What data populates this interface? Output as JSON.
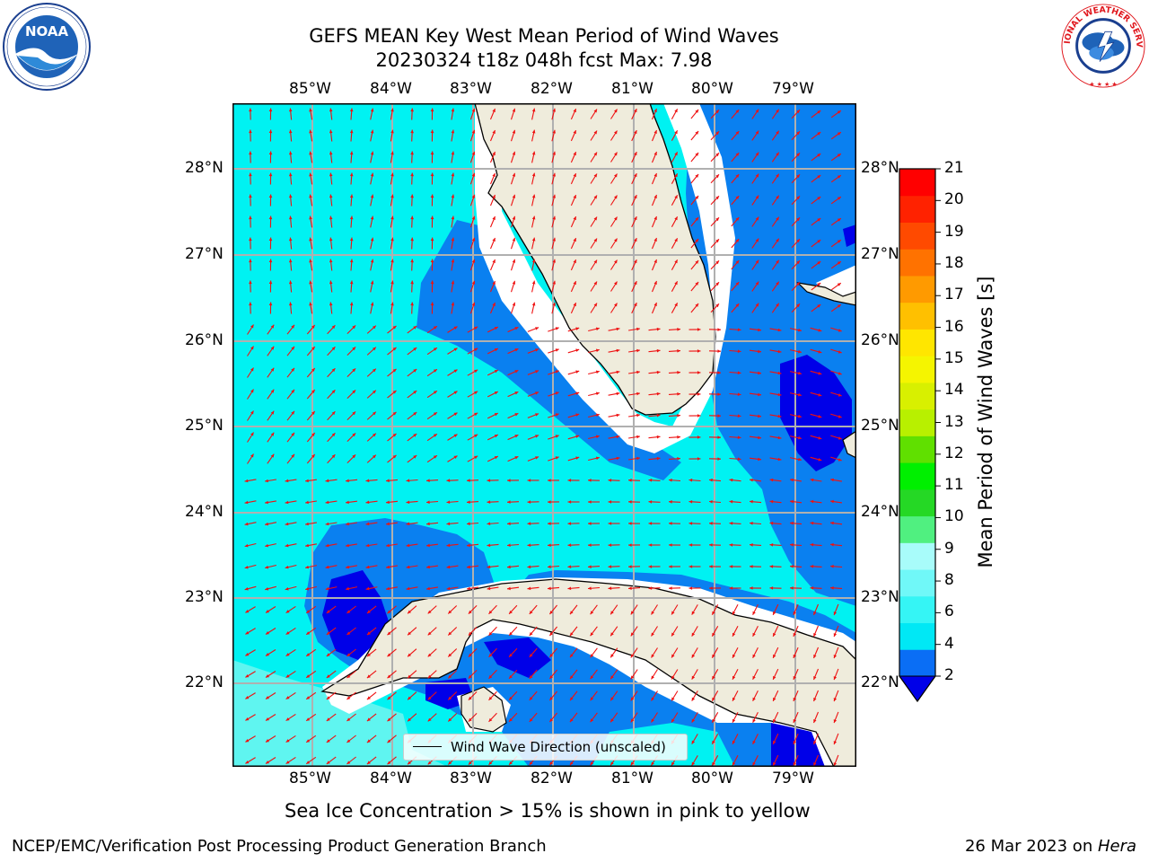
{
  "header": {
    "title_line1": "GEFS MEAN Key West Mean Period of Wind Waves",
    "title_line2": "20230324 t18z 048h fcst   Max: 7.98"
  },
  "logos": {
    "left": "NOAA",
    "left_ring_text": "NATIONAL OCEANIC AND ATMOSPHERIC ADMINISTRATION · U.S. DEPARTMENT OF COMMERCE",
    "right_ring_text": "NATIONAL WEATHER SERVICE"
  },
  "map": {
    "lon_labels": [
      "85°W",
      "84°W",
      "83°W",
      "82°W",
      "81°W",
      "80°W",
      "79°W"
    ],
    "lat_labels": [
      "28°N",
      "27°N",
      "26°N",
      "25°N",
      "24°N",
      "23°N",
      "22°N"
    ],
    "legend_label": "Wind Wave Direction (unscaled)",
    "colors": {
      "land": "#efecdc",
      "ocean_2_4": "#0a80f0",
      "ocean_4_6": "#00f2f2",
      "ocean_6_8": "#5ff5f0",
      "ocean_lt2": "#0000e8",
      "vector": "#ee1111",
      "grid": "#b0b0b0"
    }
  },
  "colorbar": {
    "title": "Mean Period of Wind Waves [s]",
    "tick_labels": [
      "21",
      "20",
      "19",
      "18",
      "17",
      "16",
      "15",
      "14",
      "13",
      "12",
      "11",
      "10",
      "9",
      "8",
      "6",
      "4",
      "2"
    ],
    "colors": [
      "#0a6ef5",
      "#00e8f5",
      "#35f5f5",
      "#70f8f8",
      "#a8fcfa",
      "#50f080",
      "#25d825",
      "#00f000",
      "#60e000",
      "#b8f000",
      "#d8f000",
      "#f5f500",
      "#ffe600",
      "#ffc000",
      "#ff9a00",
      "#ff7200",
      "#ff4a00",
      "#ff2200",
      "#ff0000"
    ]
  },
  "subtitle": "Sea Ice Concentration > 15% is shown in pink to yellow",
  "footer": {
    "left": "NCEP/EMC/Verification Post Processing Product Generation Branch",
    "right_date": "26 Mar 2023 on ",
    "right_machine": "Hera"
  }
}
